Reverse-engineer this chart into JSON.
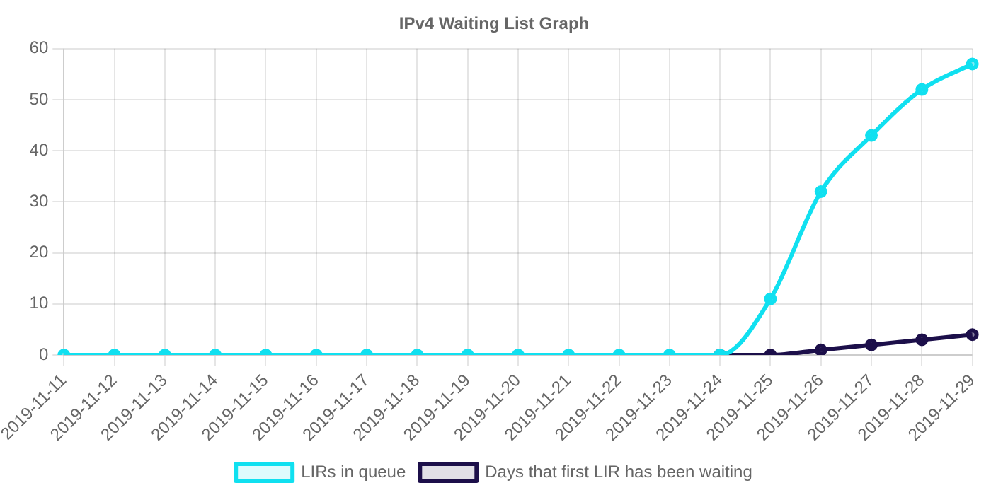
{
  "chart_data": {
    "type": "line",
    "title": "IPv4 Waiting List Graph",
    "categories": [
      "2019-11-11",
      "2019-11-12",
      "2019-11-13",
      "2019-11-14",
      "2019-11-15",
      "2019-11-16",
      "2019-11-17",
      "2019-11-18",
      "2019-11-19",
      "2019-11-20",
      "2019-11-21",
      "2019-11-22",
      "2019-11-23",
      "2019-11-24",
      "2019-11-25",
      "2019-11-26",
      "2019-11-27",
      "2019-11-28",
      "2019-11-29"
    ],
    "series": [
      {
        "name": "LIRs in queue",
        "color": "#10e0f0",
        "values": [
          0,
          0,
          0,
          0,
          0,
          0,
          0,
          0,
          0,
          0,
          0,
          0,
          0,
          0,
          11,
          32,
          43,
          52,
          57
        ]
      },
      {
        "name": "Days that first LIR has been waiting",
        "color": "#1c0f4a",
        "values": [
          null,
          null,
          null,
          null,
          null,
          null,
          null,
          null,
          null,
          null,
          null,
          null,
          null,
          0,
          0,
          1,
          2,
          3,
          4
        ]
      }
    ],
    "ylim": [
      0,
      60
    ],
    "yticks": [
      0,
      10,
      20,
      30,
      40,
      50,
      60
    ],
    "grid": true,
    "legend": "bottom",
    "marker": "circle",
    "line_style": "solid"
  }
}
